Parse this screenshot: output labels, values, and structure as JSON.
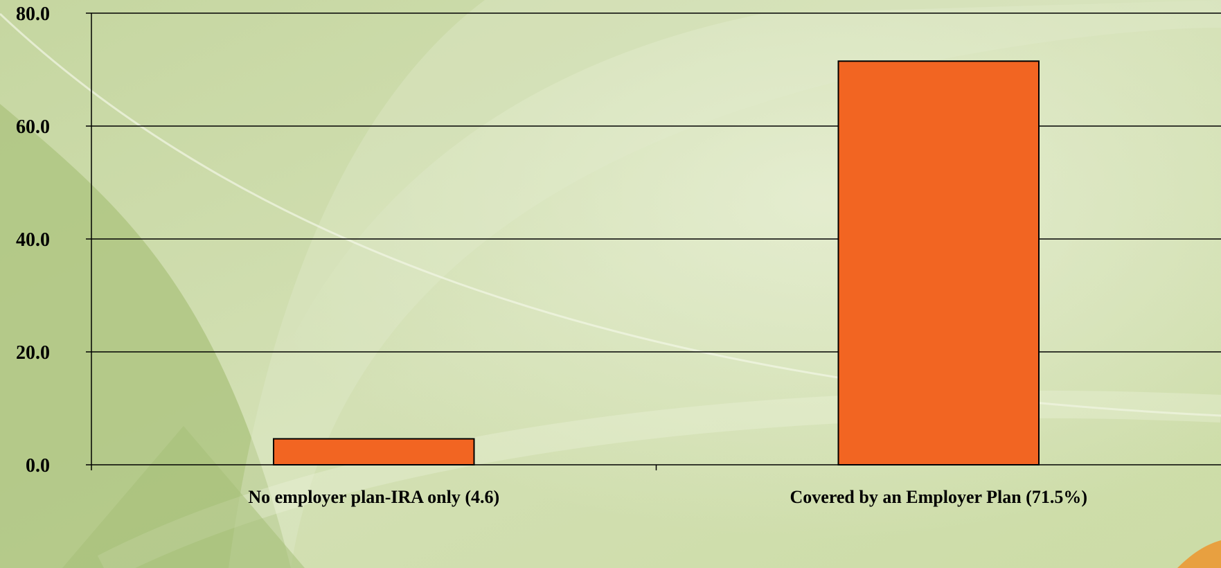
{
  "chart_data": {
    "type": "bar",
    "title": "",
    "xlabel": "",
    "ylabel": "",
    "ylim": [
      0,
      80
    ],
    "y_ticks": [
      "0.0",
      "20.0",
      "40.0",
      "60.0",
      "80.0"
    ],
    "y_tick_values": [
      0,
      20,
      40,
      60,
      80
    ],
    "grid": true,
    "categories": [
      "No employer plan-IRA only (4.6)",
      "Covered by an Employer Plan (71.5%)"
    ],
    "values": [
      4.6,
      71.5
    ],
    "colors": {
      "bar_fill": "#F26522",
      "bar_stroke": "#000000",
      "grid": "#000000",
      "background_light": "#DDE7C4",
      "background_dark": "#A9C27C"
    }
  }
}
